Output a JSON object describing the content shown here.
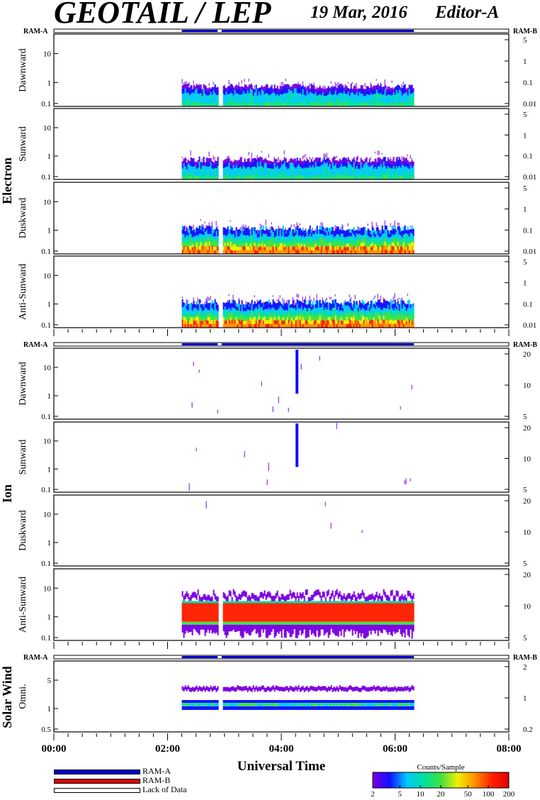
{
  "header": {
    "title": "GEOTAIL / LEP",
    "date": "19 Mar, 2016",
    "editor": "Editor-A"
  },
  "ram_labels": {
    "left": "RAM-A",
    "right": "RAM-B"
  },
  "groups": [
    {
      "label": "Electron",
      "panels": [
        "Dawnward",
        "Sunward",
        "Duskward",
        "Anti-Sunward"
      ]
    },
    {
      "label": "Ion",
      "panels": [
        "Dawnward",
        "Sunward",
        "Duskward",
        "Anti-Sunward"
      ]
    },
    {
      "label": "Solar Wind",
      "panels": [
        "Omni."
      ]
    }
  ],
  "x_axis": {
    "label": "Universal Time",
    "ticks": [
      "00:00",
      "02:00",
      "04:00",
      "06:00",
      "08:00"
    ]
  },
  "colorbar": {
    "title": "Counts/Sample",
    "ticks": [
      "2",
      "5",
      "10",
      "20",
      "50",
      "100",
      "200"
    ],
    "colors": [
      "#7a00e0",
      "#1010ff",
      "#00c8ff",
      "#00e0a0",
      "#40e040",
      "#f0f000",
      "#ff9000",
      "#ff2000",
      "#e00000"
    ]
  },
  "legend": [
    {
      "label": "RAM-A",
      "color": "#0000c8"
    },
    {
      "label": "RAM-B",
      "color": "#e00000"
    },
    {
      "label": "Lack of Data",
      "color": "#ffffff"
    }
  ],
  "chart_data": {
    "type": "heatmap",
    "x_range_hours": [
      0,
      8
    ],
    "data_coverage_hours": [
      2.25,
      6.33
    ],
    "data_gap_hours": [
      [
        2.88,
        2.95
      ]
    ],
    "ram_bar": "RAM-A",
    "panels": [
      {
        "group": "Electron",
        "name": "Dawnward",
        "left_ticks": [
          "10",
          "1",
          "0.1"
        ],
        "right_ticks": [
          "5",
          "1",
          "0.1",
          "0.01"
        ],
        "right_scale": "log"
      },
      {
        "group": "Electron",
        "name": "Sunward",
        "left_ticks": [
          "10",
          "1",
          "0.1"
        ],
        "right_ticks": [
          "5",
          "1",
          "0.1",
          "0.01"
        ],
        "right_scale": "log"
      },
      {
        "group": "Electron",
        "name": "Duskward",
        "left_ticks": [
          "10",
          "1",
          "0.1"
        ],
        "right_ticks": [
          "5",
          "1",
          "0.1",
          "0.01"
        ],
        "right_scale": "log"
      },
      {
        "group": "Electron",
        "name": "Anti-Sunward",
        "left_ticks": [
          "10",
          "1",
          "0.1"
        ],
        "right_ticks": [
          "5",
          "1",
          "0.1",
          "0.01"
        ],
        "right_scale": "log"
      },
      {
        "group": "Ion",
        "name": "Dawnward",
        "left_ticks": [
          "10",
          "1",
          "0.1"
        ],
        "right_ticks": [
          "20",
          "10",
          "5"
        ],
        "right_scale": "linear"
      },
      {
        "group": "Ion",
        "name": "Sunward",
        "left_ticks": [
          "10",
          "1",
          "0.1"
        ],
        "right_ticks": [
          "20",
          "10",
          "5"
        ],
        "right_scale": "linear"
      },
      {
        "group": "Ion",
        "name": "Duskward",
        "left_ticks": [
          "10",
          "1",
          "0.1"
        ],
        "right_ticks": [
          "20",
          "10",
          "5"
        ],
        "right_scale": "linear"
      },
      {
        "group": "Ion",
        "name": "Anti-Sunward",
        "left_ticks": [
          "10",
          "1",
          "0.1"
        ],
        "right_ticks": [
          "20",
          "10",
          "5"
        ],
        "right_scale": "linear"
      },
      {
        "group": "Solar Wind",
        "name": "Omni.",
        "left_ticks": [
          "5",
          "1",
          "0.5"
        ],
        "right_ticks": [
          "2",
          "1",
          "0.2"
        ],
        "right_scale": "log"
      }
    ]
  }
}
